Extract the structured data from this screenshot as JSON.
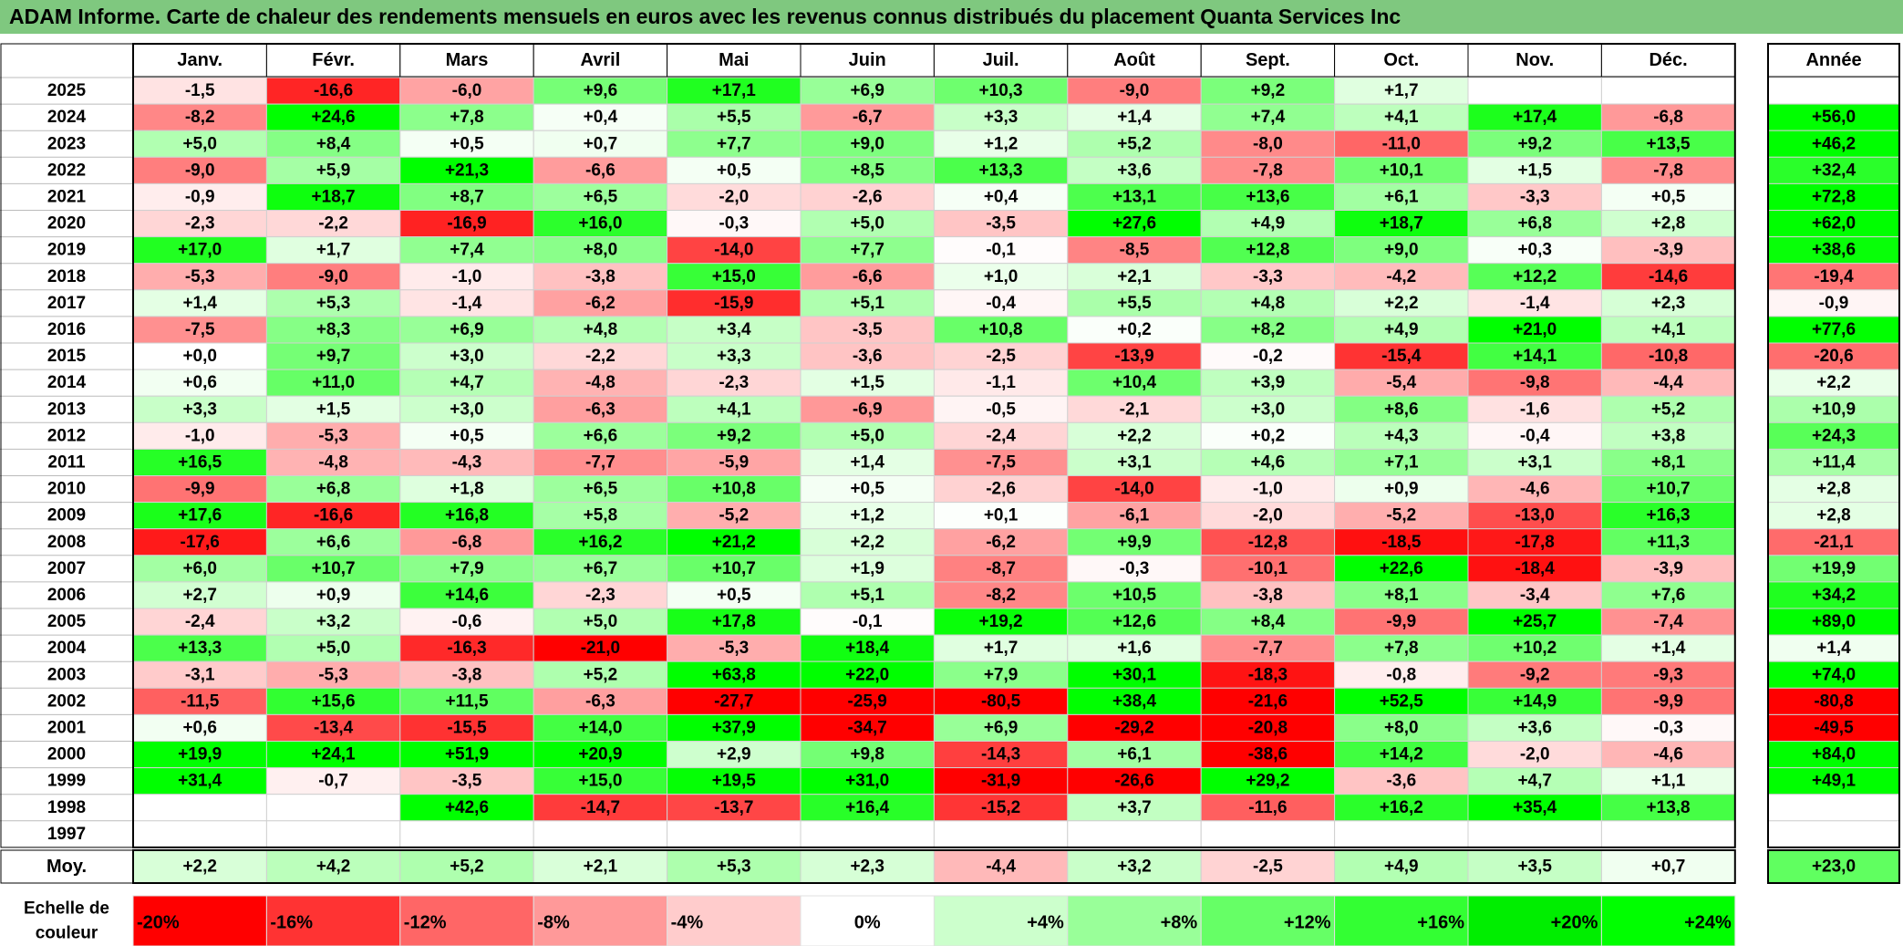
{
  "title": "ADAM Informe. Carte de chaleur des rendements mensuels en euros avec les revenus connus distribués du placement Quanta Services Inc",
  "chart_data": {
    "type": "heatmap",
    "title": "ADAM Informe. Carte de chaleur des rendements mensuels en euros avec les revenus connus distribués du placement Quanta Services Inc",
    "months": [
      "Janv.",
      "Févr.",
      "Mars",
      "Avril",
      "Mai",
      "Juin",
      "Juil.",
      "Août",
      "Sept.",
      "Oct.",
      "Nov.",
      "Déc."
    ],
    "year_header": "Année",
    "avg_label": "Moy.",
    "rows": [
      {
        "year": "2025",
        "values": [
          "-1,5",
          "-16,6",
          "-6,0",
          "+9,6",
          "+17,1",
          "+6,9",
          "+10,3",
          "-9,0",
          "+9,2",
          "+1,7",
          "",
          ""
        ],
        "annual": ""
      },
      {
        "year": "2024",
        "values": [
          "-8,2",
          "+24,6",
          "+7,8",
          "+0,4",
          "+5,5",
          "-6,7",
          "+3,3",
          "+1,4",
          "+7,4",
          "+4,1",
          "+17,4",
          "-6,8"
        ],
        "annual": "+56,0"
      },
      {
        "year": "2023",
        "values": [
          "+5,0",
          "+8,4",
          "+0,5",
          "+0,7",
          "+7,7",
          "+9,0",
          "+1,2",
          "+5,2",
          "-8,0",
          "-11,0",
          "+9,2",
          "+13,5"
        ],
        "annual": "+46,2"
      },
      {
        "year": "2022",
        "values": [
          "-9,0",
          "+5,9",
          "+21,3",
          "-6,6",
          "+0,5",
          "+8,5",
          "+13,3",
          "+3,6",
          "-7,8",
          "+10,1",
          "+1,5",
          "-7,8"
        ],
        "annual": "+32,4"
      },
      {
        "year": "2021",
        "values": [
          "-0,9",
          "+18,7",
          "+8,7",
          "+6,5",
          "-2,0",
          "-2,6",
          "+0,4",
          "+13,1",
          "+13,6",
          "+6,1",
          "-3,3",
          "+0,5"
        ],
        "annual": "+72,8"
      },
      {
        "year": "2020",
        "values": [
          "-2,3",
          "-2,2",
          "-16,9",
          "+16,0",
          "-0,3",
          "+5,0",
          "-3,5",
          "+27,6",
          "+4,9",
          "+18,7",
          "+6,8",
          "+2,8"
        ],
        "annual": "+62,0"
      },
      {
        "year": "2019",
        "values": [
          "+17,0",
          "+1,7",
          "+7,4",
          "+8,0",
          "-14,0",
          "+7,7",
          "-0,1",
          "-8,5",
          "+12,8",
          "+9,0",
          "+0,3",
          "-3,9"
        ],
        "annual": "+38,6"
      },
      {
        "year": "2018",
        "values": [
          "-5,3",
          "-9,0",
          "-1,0",
          "-3,8",
          "+15,0",
          "-6,6",
          "+1,0",
          "+2,1",
          "-3,3",
          "-4,2",
          "+12,2",
          "-14,6"
        ],
        "annual": "-19,4"
      },
      {
        "year": "2017",
        "values": [
          "+1,4",
          "+5,3",
          "-1,4",
          "-6,2",
          "-15,9",
          "+5,1",
          "-0,4",
          "+5,5",
          "+4,8",
          "+2,2",
          "-1,4",
          "+2,3"
        ],
        "annual": "-0,9"
      },
      {
        "year": "2016",
        "values": [
          "-7,5",
          "+8,3",
          "+6,9",
          "+4,8",
          "+3,4",
          "-3,5",
          "+10,8",
          "+0,2",
          "+8,2",
          "+4,9",
          "+21,0",
          "+4,1"
        ],
        "annual": "+77,6"
      },
      {
        "year": "2015",
        "values": [
          "+0,0",
          "+9,7",
          "+3,0",
          "-2,2",
          "+3,3",
          "-3,6",
          "-2,5",
          "-13,9",
          "-0,2",
          "-15,4",
          "+14,1",
          "-10,8"
        ],
        "annual": "-20,6"
      },
      {
        "year": "2014",
        "values": [
          "+0,6",
          "+11,0",
          "+4,7",
          "-4,8",
          "-2,3",
          "+1,5",
          "-1,1",
          "+10,4",
          "+3,9",
          "-5,4",
          "-9,8",
          "-4,4"
        ],
        "annual": "+2,2"
      },
      {
        "year": "2013",
        "values": [
          "+3,3",
          "+1,5",
          "+3,0",
          "-6,3",
          "+4,1",
          "-6,9",
          "-0,5",
          "-2,1",
          "+3,0",
          "+8,6",
          "-1,6",
          "+5,2"
        ],
        "annual": "+10,9"
      },
      {
        "year": "2012",
        "values": [
          "-1,0",
          "-5,3",
          "+0,5",
          "+6,6",
          "+9,2",
          "+5,0",
          "-2,4",
          "+2,2",
          "+0,2",
          "+4,3",
          "-0,4",
          "+3,8"
        ],
        "annual": "+24,3"
      },
      {
        "year": "2011",
        "values": [
          "+16,5",
          "-4,8",
          "-4,3",
          "-7,7",
          "-5,9",
          "+1,4",
          "-7,5",
          "+3,1",
          "+4,6",
          "+7,1",
          "+3,1",
          "+8,1"
        ],
        "annual": "+11,4"
      },
      {
        "year": "2010",
        "values": [
          "-9,9",
          "+6,8",
          "+1,8",
          "+6,5",
          "+10,8",
          "+0,5",
          "-2,6",
          "-14,0",
          "-1,0",
          "+0,9",
          "-4,6",
          "+10,7"
        ],
        "annual": "+2,8"
      },
      {
        "year": "2009",
        "values": [
          "+17,6",
          "-16,6",
          "+16,8",
          "+5,8",
          "-5,2",
          "+1,2",
          "+0,1",
          "-6,1",
          "-2,0",
          "-5,2",
          "-13,0",
          "+16,3"
        ],
        "annual": "+2,8"
      },
      {
        "year": "2008",
        "values": [
          "-17,6",
          "+6,6",
          "-6,8",
          "+16,2",
          "+21,2",
          "+2,2",
          "-6,2",
          "+9,9",
          "-12,8",
          "-18,5",
          "-17,8",
          "+11,3"
        ],
        "annual": "-21,1"
      },
      {
        "year": "2007",
        "values": [
          "+6,0",
          "+10,7",
          "+7,9",
          "+6,7",
          "+10,7",
          "+1,9",
          "-8,7",
          "-0,3",
          "-10,1",
          "+22,6",
          "-18,4",
          "-3,9"
        ],
        "annual": "+19,9"
      },
      {
        "year": "2006",
        "values": [
          "+2,7",
          "+0,9",
          "+14,6",
          "-2,3",
          "+0,5",
          "+5,1",
          "-8,2",
          "+10,5",
          "-3,8",
          "+8,1",
          "-3,4",
          "+7,6"
        ],
        "annual": "+34,2"
      },
      {
        "year": "2005",
        "values": [
          "-2,4",
          "+3,2",
          "-0,6",
          "+5,0",
          "+17,8",
          "-0,1",
          "+19,2",
          "+12,6",
          "+8,4",
          "-9,9",
          "+25,7",
          "-7,4"
        ],
        "annual": "+89,0"
      },
      {
        "year": "2004",
        "values": [
          "+13,3",
          "+5,0",
          "-16,3",
          "-21,0",
          "-5,3",
          "+18,4",
          "+1,7",
          "+1,6",
          "-7,7",
          "+7,8",
          "+10,2",
          "+1,4"
        ],
        "annual": "+1,4"
      },
      {
        "year": "2003",
        "values": [
          "-3,1",
          "-5,3",
          "-3,8",
          "+5,2",
          "+63,8",
          "+22,0",
          "+7,9",
          "+30,1",
          "-18,3",
          "-0,8",
          "-9,2",
          "-9,3"
        ],
        "annual": "+74,0"
      },
      {
        "year": "2002",
        "values": [
          "-11,5",
          "+15,6",
          "+11,5",
          "-6,3",
          "-27,7",
          "-25,9",
          "-80,5",
          "+38,4",
          "-21,6",
          "+52,5",
          "+14,9",
          "-9,9"
        ],
        "annual": "-80,8"
      },
      {
        "year": "2001",
        "values": [
          "+0,6",
          "-13,4",
          "-15,5",
          "+14,0",
          "+37,9",
          "-34,7",
          "+6,9",
          "-29,2",
          "-20,8",
          "+8,0",
          "+3,6",
          "-0,3"
        ],
        "annual": "-49,5"
      },
      {
        "year": "2000",
        "values": [
          "+19,9",
          "+24,1",
          "+51,9",
          "+20,9",
          "+2,9",
          "+9,8",
          "-14,3",
          "+6,1",
          "-38,6",
          "+14,2",
          "-2,0",
          "-4,6"
        ],
        "annual": "+84,0"
      },
      {
        "year": "1999",
        "values": [
          "+31,4",
          "-0,7",
          "-3,5",
          "+15,0",
          "+19,5",
          "+31,0",
          "-31,9",
          "-26,6",
          "+29,2",
          "-3,6",
          "+4,7",
          "+1,1"
        ],
        "annual": "+49,1"
      },
      {
        "year": "1998",
        "values": [
          "",
          "",
          "+42,6",
          "-14,7",
          "-13,7",
          "+16,4",
          "-15,2",
          "+3,7",
          "-11,6",
          "+16,2",
          "+35,4",
          "+13,8"
        ],
        "annual": ""
      },
      {
        "year": "1997",
        "values": [
          "",
          "",
          "",
          "",
          "",
          "",
          "",
          "",
          "",
          "",
          "",
          ""
        ],
        "annual": ""
      }
    ],
    "averages": [
      "+2,2",
      "+4,2",
      "+5,2",
      "+2,1",
      "+5,3",
      "+2,3",
      "-4,4",
      "+3,2",
      "-2,5",
      "+4,9",
      "+3,5",
      "+0,7"
    ],
    "average_annual": "+23,0",
    "scale_label_line1": "Echelle de",
    "scale_label_line2": "couleur",
    "scale": [
      {
        "label": "-20%",
        "color": "#ff0000"
      },
      {
        "label": "-16%",
        "color": "#ff3333"
      },
      {
        "label": "-12%",
        "color": "#ff6666"
      },
      {
        "label": "-8%",
        "color": "#ff9999"
      },
      {
        "label": "-4%",
        "color": "#ffcccc"
      },
      {
        "label": "0%",
        "color": "#ffffff"
      },
      {
        "label": "+4%",
        "color": "#ccffcc"
      },
      {
        "label": "+8%",
        "color": "#99ff99"
      },
      {
        "label": "+12%",
        "color": "#66ff66"
      },
      {
        "label": "+16%",
        "color": "#33ff33"
      },
      {
        "label": "+20%",
        "color": "#00ee00"
      },
      {
        "label": "+24%",
        "color": "#00ff00"
      }
    ],
    "colors": {
      "title_bar": "#7fc87f",
      "positive": "#00ff00",
      "negative": "#ff0000",
      "neutral": "#ffffff"
    }
  }
}
